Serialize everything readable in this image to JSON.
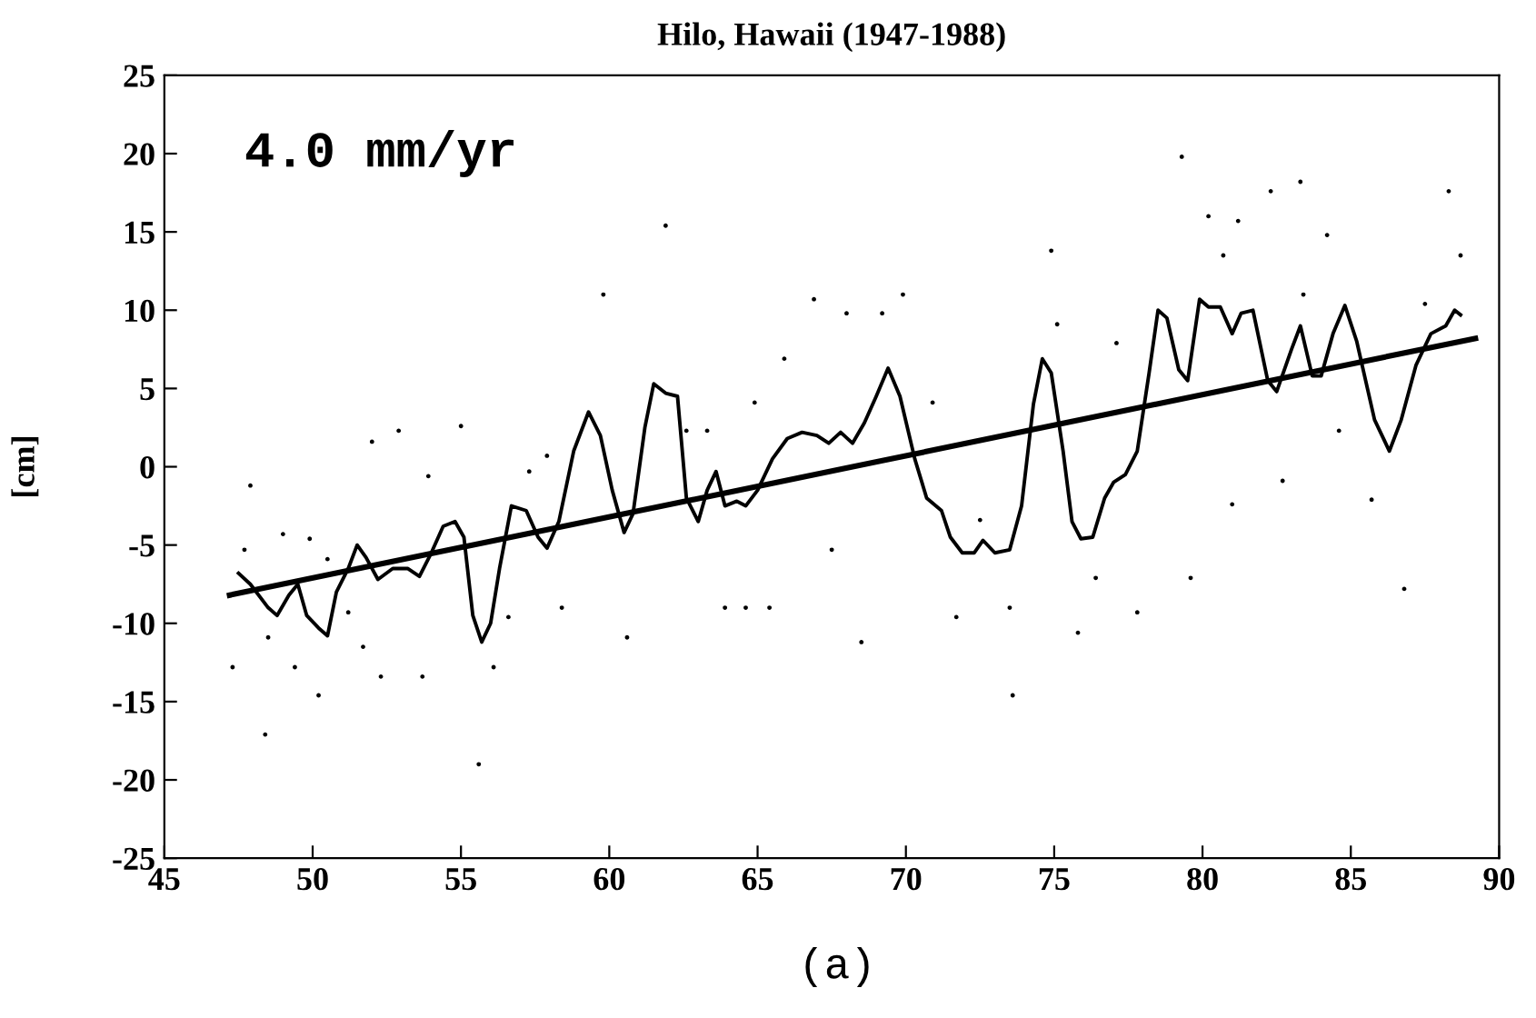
{
  "chart_data": {
    "type": "line",
    "title": "Hilo, Hawaii (1947-1988)",
    "ylabel": "[cm]",
    "annotations": [
      "4.0 mm/yr",
      "(a)"
    ],
    "xlim": [
      45,
      90
    ],
    "xticks": [
      45,
      50,
      55,
      60,
      65,
      70,
      75,
      80,
      85,
      90
    ],
    "ylim": [
      -25,
      25
    ],
    "yticks": [
      -25,
      -20,
      -15,
      -10,
      -5,
      0,
      5,
      10,
      15,
      20,
      25
    ],
    "grid": false,
    "legend": false,
    "marker": "none",
    "line_style": "solid",
    "series": [
      {
        "type": "scatter",
        "color": "#000000",
        "marker": "circle",
        "x": [
          47.3,
          47.7,
          47.9,
          48.4,
          48.5,
          49.0,
          49.4,
          49.9,
          50.2,
          50.5,
          51.2,
          51.7,
          52.0,
          52.3,
          52.9,
          53.7,
          53.9,
          55.0,
          55.6,
          56.1,
          56.6,
          57.3,
          57.9,
          58.4,
          59.8,
          60.6,
          61.9,
          62.6,
          63.3,
          63.9,
          64.6,
          64.9,
          65.4,
          65.9,
          66.9,
          67.5,
          68.0,
          68.5,
          69.2,
          69.9,
          70.9,
          71.7,
          72.5,
          73.5,
          73.6,
          74.9,
          75.1,
          75.8,
          76.4,
          77.1,
          77.8,
          79.3,
          79.6,
          80.2,
          80.7,
          81.0,
          81.2,
          82.3,
          82.7,
          83.3,
          83.4,
          84.2,
          84.6,
          85.7,
          86.8,
          87.5,
          88.3,
          88.7
        ],
        "values": [
          -12.8,
          -5.3,
          -1.2,
          -17.1,
          -10.9,
          -4.3,
          -12.8,
          -4.6,
          -14.6,
          -5.9,
          -9.3,
          -11.5,
          1.6,
          -13.4,
          2.3,
          -13.4,
          -0.6,
          2.6,
          -19.0,
          -12.8,
          -9.6,
          -0.3,
          0.7,
          -9.0,
          11.0,
          -10.9,
          15.4,
          2.3,
          2.3,
          -9.0,
          -9.0,
          4.1,
          -9.0,
          6.9,
          10.7,
          -5.3,
          9.8,
          -11.2,
          9.8,
          11.0,
          4.1,
          -9.6,
          -3.4,
          -9.0,
          -14.6,
          13.8,
          9.1,
          -10.6,
          -7.1,
          7.9,
          -9.3,
          19.8,
          -7.1,
          16.0,
          13.5,
          -2.4,
          15.7,
          17.6,
          -0.9,
          18.2,
          11.0,
          14.8,
          2.3,
          -2.1,
          -7.8,
          10.4,
          17.6,
          13.5
        ]
      },
      {
        "color": "#000000",
        "x": [
          47.5,
          47.9,
          48.5,
          48.8,
          49.2,
          49.5,
          49.8,
          50.2,
          50.5,
          50.8,
          51.2,
          51.5,
          51.8,
          52.2,
          52.7,
          53.2,
          53.6,
          54.0,
          54.4,
          54.8,
          55.1,
          55.4,
          55.7,
          56.0,
          56.3,
          56.7,
          57.2,
          57.6,
          57.9,
          58.3,
          58.8,
          59.3,
          59.7,
          60.1,
          60.5,
          60.8,
          61.2,
          61.5,
          61.9,
          62.3,
          62.6,
          63.0,
          63.3,
          63.6,
          63.9,
          64.3,
          64.6,
          65.0,
          65.5,
          66.0,
          66.5,
          67.0,
          67.4,
          67.8,
          68.2,
          68.6,
          69.0,
          69.4,
          69.8,
          70.3,
          70.7,
          71.2,
          71.5,
          71.9,
          72.3,
          72.6,
          73.0,
          73.5,
          73.9,
          74.3,
          74.6,
          74.9,
          75.3,
          75.6,
          75.9,
          76.3,
          76.7,
          77.0,
          77.4,
          77.8,
          78.2,
          78.5,
          78.8,
          79.2,
          79.5,
          79.9,
          80.2,
          80.6,
          81.0,
          81.3,
          81.7,
          82.2,
          82.5,
          83.0,
          83.3,
          83.7,
          84.0,
          84.4,
          84.8,
          85.2,
          85.8,
          86.3,
          86.7,
          87.2,
          87.7,
          88.2,
          88.5,
          88.7
        ],
        "values": [
          -6.8,
          -7.5,
          -9.0,
          -9.5,
          -8.2,
          -7.5,
          -9.5,
          -10.3,
          -10.8,
          -8.0,
          -6.5,
          -5.0,
          -5.8,
          -7.2,
          -6.5,
          -6.5,
          -7.0,
          -5.5,
          -3.8,
          -3.5,
          -4.5,
          -9.5,
          -11.2,
          -10.0,
          -6.5,
          -2.5,
          -2.8,
          -4.5,
          -5.2,
          -3.5,
          1.0,
          3.5,
          2.0,
          -1.5,
          -4.2,
          -3.0,
          2.5,
          5.3,
          4.7,
          4.5,
          -2.0,
          -3.5,
          -1.5,
          -0.3,
          -2.5,
          -2.2,
          -2.5,
          -1.5,
          0.5,
          1.8,
          2.2,
          2.0,
          1.5,
          2.2,
          1.5,
          2.8,
          4.5,
          6.3,
          4.5,
          0.5,
          -2.0,
          -2.8,
          -4.5,
          -5.5,
          -5.5,
          -4.7,
          -5.5,
          -5.3,
          -2.5,
          4.0,
          6.9,
          6.0,
          1.0,
          -3.5,
          -4.6,
          -4.5,
          -2.0,
          -1.0,
          -0.5,
          1.0,
          6.0,
          10.0,
          9.5,
          6.2,
          5.5,
          10.7,
          10.2,
          10.2,
          8.5,
          9.8,
          10.0,
          5.5,
          4.8,
          7.5,
          9.0,
          5.8,
          5.8,
          8.5,
          10.3,
          8.0,
          3.0,
          1.0,
          3.0,
          6.5,
          8.5,
          9.0,
          10.0,
          9.7
        ]
      },
      {
        "color": "#000000",
        "x": [
          47.2,
          89.2
        ],
        "values": [
          -8.2,
          8.2
        ]
      }
    ]
  }
}
